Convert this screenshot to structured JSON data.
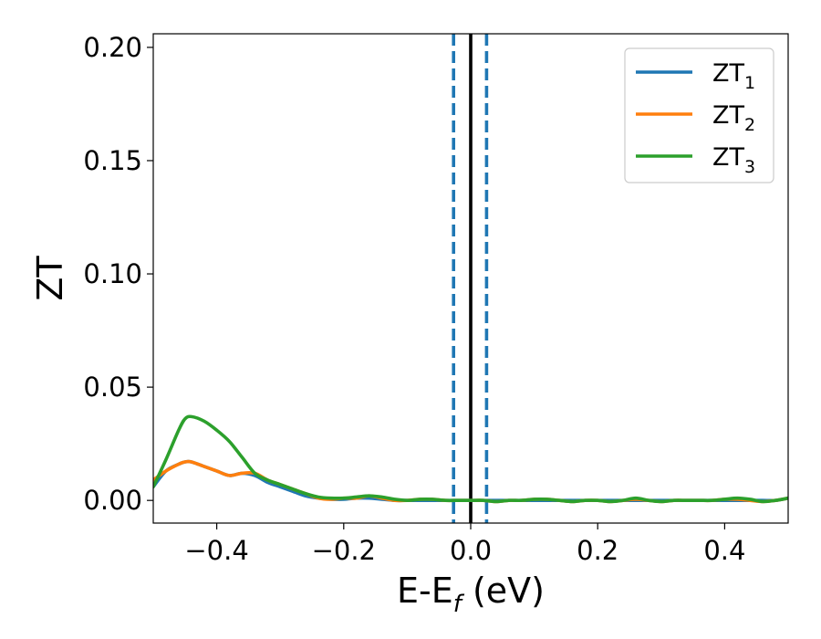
{
  "chart_data": {
    "type": "line",
    "title": "",
    "xlabel": {
      "main": "E-E",
      "sub": "f",
      "suffix": " (eV)"
    },
    "ylabel": "ZT",
    "xlim": [
      -0.5,
      0.5
    ],
    "ylim": [
      -0.01,
      0.206
    ],
    "xticks": [
      -0.4,
      -0.2,
      0.0,
      0.2,
      0.4
    ],
    "xtick_labels": [
      "−0.4",
      "−0.2",
      "0.0",
      "0.2",
      "0.4"
    ],
    "yticks": [
      0.0,
      0.05,
      0.1,
      0.15,
      0.2
    ],
    "ytick_labels": [
      "0.00",
      "0.05",
      "0.10",
      "0.15",
      "0.20"
    ],
    "grid": false,
    "legend_position": "top-right",
    "colors": {
      "ZT1": "#1f77b4",
      "ZT2": "#ff7f0e",
      "ZT3": "#2ca02c",
      "fermi": "#000000"
    },
    "vlines": [
      {
        "x": 0.0,
        "style": "solid",
        "color": "#000000"
      },
      {
        "x": -0.027,
        "style": "dashed",
        "color": "#1f77b4"
      },
      {
        "x": 0.025,
        "style": "dashed",
        "color": "#1f77b4"
      }
    ],
    "x": [
      -0.5,
      -0.48,
      -0.46,
      -0.45,
      -0.44,
      -0.42,
      -0.4,
      -0.38,
      -0.36,
      -0.34,
      -0.32,
      -0.3,
      -0.28,
      -0.26,
      -0.24,
      -0.22,
      -0.2,
      -0.18,
      -0.16,
      -0.14,
      -0.12,
      -0.1,
      -0.08,
      -0.06,
      -0.04,
      -0.02,
      0.0,
      0.02,
      0.04,
      0.06,
      0.08,
      0.1,
      0.12,
      0.14,
      0.16,
      0.18,
      0.2,
      0.22,
      0.24,
      0.26,
      0.28,
      0.3,
      0.32,
      0.34,
      0.36,
      0.38,
      0.4,
      0.42,
      0.44,
      0.46,
      0.48,
      0.5
    ],
    "series": [
      {
        "name": "ZT",
        "sub": "1",
        "color": "#1f77b4",
        "values": [
          0.006,
          0.013,
          0.016,
          0.017,
          0.017,
          0.015,
          0.013,
          0.011,
          0.012,
          0.011,
          0.008,
          0.006,
          0.004,
          0.002,
          0.001,
          0.0005,
          0.0005,
          0.001,
          0.001,
          0.0005,
          0.0,
          0.0,
          0.0,
          0.0,
          0.0,
          0.0,
          0.0,
          0.0,
          0.0,
          0.0,
          0.0,
          0.0,
          0.0,
          0.0,
          0.0,
          0.0,
          0.0,
          0.0,
          0.0,
          0.0,
          0.0,
          0.0,
          0.0,
          0.0,
          0.0,
          0.0,
          0.0,
          0.0,
          0.0,
          0.0,
          0.0,
          0.001
        ]
      },
      {
        "name": "ZT",
        "sub": "2",
        "color": "#ff7f0e",
        "values": [
          0.009,
          0.013,
          0.016,
          0.017,
          0.017,
          0.015,
          0.013,
          0.011,
          0.012,
          0.012,
          0.009,
          0.007,
          0.005,
          0.003,
          0.001,
          0.0005,
          0.001,
          0.001,
          0.002,
          0.001,
          0.0,
          0.0,
          0.0005,
          0.0005,
          0.0,
          0.0,
          0.0,
          0.0,
          -0.0005,
          0.0,
          0.0,
          0.0005,
          0.0005,
          0.0,
          -0.0005,
          0.0,
          0.0,
          -0.0005,
          0.0,
          0.0005,
          0.0,
          -0.0005,
          0.0,
          0.0,
          0.0,
          0.0,
          0.0005,
          0.0005,
          0.0,
          -0.0005,
          0.0,
          0.001
        ]
      },
      {
        "name": "ZT",
        "sub": "3",
        "color": "#2ca02c",
        "values": [
          0.006,
          0.018,
          0.031,
          0.036,
          0.037,
          0.035,
          0.031,
          0.026,
          0.019,
          0.012,
          0.009,
          0.007,
          0.005,
          0.003,
          0.0015,
          0.001,
          0.001,
          0.0015,
          0.002,
          0.0015,
          0.0005,
          0.0,
          0.0005,
          0.0005,
          0.0,
          0.0,
          0.0,
          0.0,
          -0.0005,
          0.0,
          0.0,
          0.0005,
          0.0005,
          0.0,
          -0.0005,
          0.0,
          0.0,
          -0.0005,
          0.0,
          0.001,
          0.0,
          -0.0005,
          0.0,
          0.0,
          0.0,
          0.0,
          0.0005,
          0.001,
          0.0005,
          -0.0005,
          0.0,
          0.001
        ]
      }
    ]
  }
}
